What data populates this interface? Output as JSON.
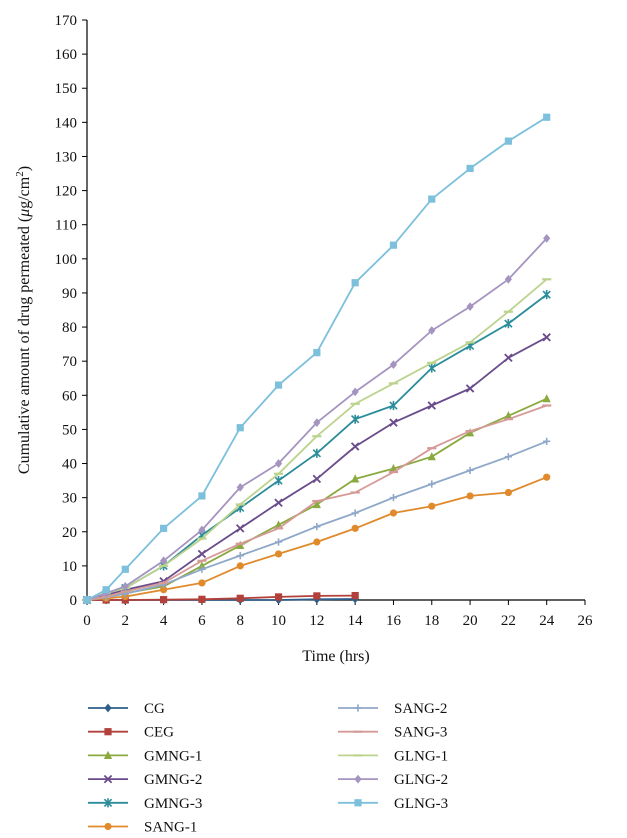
{
  "chart_data": {
    "type": "line",
    "xlabel": "Time (hrs)",
    "ylabel_main": "Cumulative amount of drug permeated (",
    "ylabel_mu": "μ",
    "ylabel_unit": "g/cm",
    "ylabel_sup": "2",
    "ylabel_close": ")",
    "xlim": [
      0,
      26
    ],
    "ylim": [
      0,
      170
    ],
    "xticks": [
      "0",
      "2",
      "4",
      "6",
      "8",
      "10",
      "12",
      "14",
      "16",
      "18",
      "20",
      "22",
      "24",
      "26"
    ],
    "yticks": [
      "0",
      "10",
      "20",
      "30",
      "40",
      "50",
      "60",
      "70",
      "80",
      "90",
      "100",
      "110",
      "120",
      "130",
      "140",
      "150",
      "160",
      "170"
    ],
    "grid": false,
    "legend_position": "bottom",
    "series": [
      {
        "name": "CG",
        "color": "#2e5f8a",
        "marker": "diamond",
        "x": [
          0,
          1,
          2,
          4,
          6,
          8,
          10,
          12,
          14
        ],
        "y": [
          0,
          0,
          0,
          0,
          0,
          0,
          0,
          0.2,
          0.3
        ]
      },
      {
        "name": "CEG",
        "color": "#b2403b",
        "marker": "square",
        "x": [
          0,
          1,
          2,
          4,
          6,
          8,
          10,
          12,
          14
        ],
        "y": [
          0,
          0,
          0,
          0.1,
          0.2,
          0.5,
          0.9,
          1.2,
          1.3
        ]
      },
      {
        "name": "GMNG-1",
        "color": "#8aaa3f",
        "marker": "triangle",
        "x": [
          0,
          1,
          2,
          4,
          6,
          8,
          10,
          12,
          14,
          16,
          18,
          20,
          22,
          24
        ],
        "y": [
          0,
          1,
          2,
          4,
          10,
          16,
          22,
          28,
          35.5,
          38.5,
          42,
          49,
          54,
          59
        ]
      },
      {
        "name": "GMNG-2",
        "color": "#6a4c8c",
        "marker": "x",
        "x": [
          0,
          1,
          2,
          4,
          6,
          8,
          10,
          12,
          14,
          16,
          18,
          20,
          22,
          24
        ],
        "y": [
          0,
          1.5,
          3,
          5.5,
          13.5,
          21,
          28.5,
          35.5,
          45,
          52,
          57,
          62,
          71,
          77
        ]
      },
      {
        "name": "GMNG-3",
        "color": "#2b8c9a",
        "marker": "star",
        "x": [
          0,
          1,
          2,
          4,
          6,
          8,
          10,
          12,
          14,
          16,
          18,
          20,
          22,
          24
        ],
        "y": [
          0,
          2,
          3.5,
          10,
          19,
          27,
          35,
          43,
          53,
          57,
          68,
          74.5,
          81,
          89.5
        ]
      },
      {
        "name": "SANG-1",
        "color": "#e08a2c",
        "marker": "circle",
        "x": [
          0,
          1,
          2,
          4,
          6,
          8,
          10,
          12,
          14,
          16,
          18,
          20,
          22,
          24
        ],
        "y": [
          0,
          0.5,
          1,
          3,
          5,
          10,
          13.5,
          17,
          21,
          25.5,
          27.5,
          30.5,
          31.5,
          36
        ]
      },
      {
        "name": "SANG-2",
        "color": "#8fa8c8",
        "marker": "plus",
        "x": [
          0,
          1,
          2,
          4,
          6,
          8,
          10,
          12,
          14,
          16,
          18,
          20,
          22,
          24
        ],
        "y": [
          0,
          0.8,
          1.8,
          4.5,
          9,
          13,
          17,
          21.5,
          25.5,
          30,
          34,
          38,
          42,
          46.5
        ]
      },
      {
        "name": "SANG-3",
        "color": "#d59a98",
        "marker": "dash",
        "x": [
          0,
          1,
          2,
          4,
          6,
          8,
          10,
          12,
          14,
          16,
          18,
          20,
          22,
          24
        ],
        "y": [
          0,
          1,
          2.5,
          5,
          11.5,
          16.5,
          21,
          29,
          31.5,
          37.5,
          44.5,
          49.5,
          53,
          57
        ]
      },
      {
        "name": "GLNG-1",
        "color": "#bcd38e",
        "marker": "dash",
        "x": [
          0,
          1,
          2,
          4,
          6,
          8,
          10,
          12,
          14,
          16,
          18,
          20,
          22,
          24
        ],
        "y": [
          0,
          2,
          3.5,
          10,
          18,
          28,
          37,
          48,
          57.5,
          63.5,
          69.5,
          75.5,
          84.5,
          94
        ]
      },
      {
        "name": "GLNG-2",
        "color": "#a594c0",
        "marker": "diamond",
        "x": [
          0,
          1,
          2,
          4,
          6,
          8,
          10,
          12,
          14,
          16,
          18,
          20,
          22,
          24
        ],
        "y": [
          0,
          2,
          4,
          11.5,
          20.5,
          33,
          40,
          52,
          61,
          69,
          79,
          86,
          94,
          106
        ]
      },
      {
        "name": "GLNG-3",
        "color": "#7cc0dc",
        "marker": "square",
        "x": [
          0,
          1,
          2,
          4,
          6,
          8,
          10,
          12,
          14,
          16,
          18,
          20,
          22,
          24
        ],
        "y": [
          0,
          3,
          9,
          21,
          30.5,
          50.5,
          63,
          72.5,
          93,
          104,
          117.5,
          126.5,
          134.5,
          141.5
        ]
      }
    ]
  }
}
